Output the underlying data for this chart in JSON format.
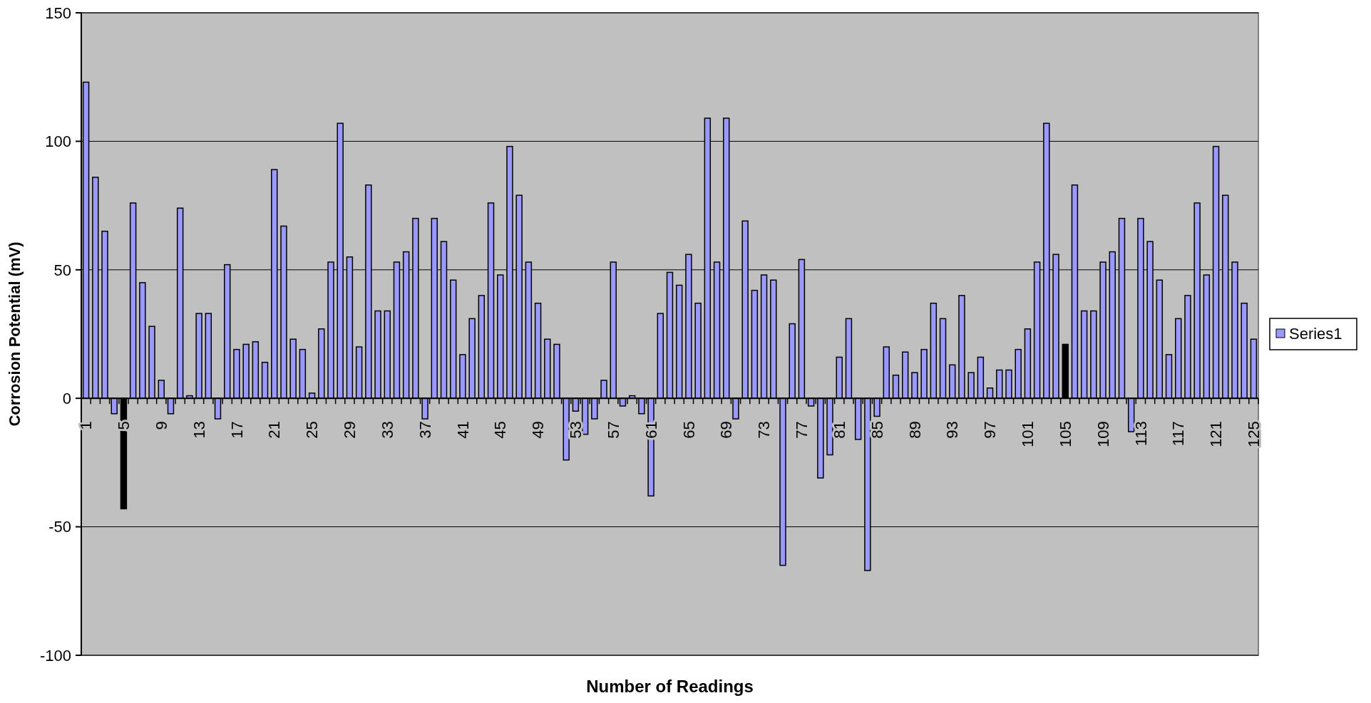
{
  "chart_data": {
    "type": "bar",
    "xlabel": "Number of Readings",
    "ylabel": "Corrosion Potential (mV)",
    "categories": [
      "1",
      null,
      null,
      null,
      "5",
      null,
      null,
      null,
      "9",
      null,
      null,
      null,
      "13",
      null,
      null,
      null,
      "17",
      null,
      null,
      null,
      "21",
      null,
      null,
      null,
      "25",
      null,
      null,
      null,
      "29",
      null,
      null,
      null,
      "33",
      null,
      null,
      null,
      "37",
      null,
      null,
      null,
      "41",
      null,
      null,
      null,
      "45",
      null,
      null,
      null,
      "49",
      null,
      null,
      null,
      "53",
      null,
      null,
      null,
      "57",
      null,
      null,
      null,
      "61",
      null,
      null,
      null,
      "65",
      null,
      null,
      null,
      "69",
      null,
      null,
      null,
      "73",
      null,
      null,
      null,
      "77",
      null,
      null,
      null,
      "81",
      null,
      null,
      null,
      "85",
      null,
      null,
      null,
      "89",
      null,
      null,
      null,
      "93",
      null,
      null,
      null,
      "97",
      null,
      null,
      null,
      "101",
      null,
      null,
      null,
      "105",
      null,
      null,
      null,
      "109",
      null,
      null,
      null,
      "113",
      null,
      null,
      null,
      "117",
      null,
      null,
      null,
      "121",
      null,
      null,
      null,
      "125"
    ],
    "series": [
      {
        "name": "Series1",
        "color": "#9999ff",
        "values": [
          123,
          86,
          65,
          -6,
          -43,
          76,
          45,
          28,
          7,
          -6,
          74,
          1,
          33,
          33,
          -8,
          52,
          19,
          21,
          22,
          14,
          89,
          67,
          23,
          19,
          2,
          27,
          53,
          107,
          55,
          20,
          83,
          34,
          34,
          53,
          57,
          70,
          -8,
          70,
          61,
          46,
          17,
          31,
          40,
          76,
          48,
          98,
          79,
          53,
          37,
          23,
          21,
          -24,
          -5,
          -14,
          -8,
          7,
          53,
          -3,
          1,
          -6,
          -38,
          33,
          49,
          44,
          56,
          37,
          109,
          53,
          109,
          -8,
          69,
          42,
          48,
          46,
          -65,
          29,
          54,
          -3,
          -31,
          -22,
          16,
          31,
          -16,
          -67,
          -7,
          20,
          9,
          18,
          10,
          19,
          37,
          31,
          13,
          40,
          10,
          16,
          4,
          11,
          11,
          19,
          27,
          53,
          107,
          56,
          21,
          83,
          34,
          34,
          53,
          57,
          70,
          -13,
          70,
          61,
          46,
          17,
          31,
          40,
          76,
          48,
          98,
          79,
          53,
          37,
          23
        ],
        "colors": [
          "#9999ff",
          "#9999ff",
          "#9999ff",
          "#9999ff",
          "#000000",
          "#9999ff",
          "#9999ff",
          "#9999ff",
          "#9999ff",
          "#9999ff",
          "#9999ff",
          "#9999ff",
          "#9999ff",
          "#9999ff",
          "#9999ff",
          "#9999ff",
          "#9999ff",
          "#9999ff",
          "#9999ff",
          "#9999ff",
          "#9999ff",
          "#9999ff",
          "#9999ff",
          "#9999ff",
          "#9999ff",
          "#9999ff",
          "#9999ff",
          "#9999ff",
          "#9999ff",
          "#9999ff",
          "#9999ff",
          "#9999ff",
          "#9999ff",
          "#9999ff",
          "#9999ff",
          "#9999ff",
          "#9999ff",
          "#9999ff",
          "#9999ff",
          "#9999ff",
          "#9999ff",
          "#9999ff",
          "#9999ff",
          "#9999ff",
          "#9999ff",
          "#9999ff",
          "#9999ff",
          "#9999ff",
          "#9999ff",
          "#9999ff",
          "#9999ff",
          "#9999ff",
          "#9999ff",
          "#9999ff",
          "#9999ff",
          "#9999ff",
          "#9999ff",
          "#9999ff",
          "#9999ff",
          "#9999ff",
          "#9999ff",
          "#9999ff",
          "#9999ff",
          "#9999ff",
          "#9999ff",
          "#9999ff",
          "#9999ff",
          "#9999ff",
          "#9999ff",
          "#9999ff",
          "#9999ff",
          "#9999ff",
          "#9999ff",
          "#9999ff",
          "#9999ff",
          "#9999ff",
          "#9999ff",
          "#9999ff",
          "#9999ff",
          "#9999ff",
          "#9999ff",
          "#9999ff",
          "#9999ff",
          "#9999ff",
          "#9999ff",
          "#9999ff",
          "#9999ff",
          "#9999ff",
          "#9999ff",
          "#9999ff",
          "#9999ff",
          "#9999ff",
          "#9999ff",
          "#9999ff",
          "#9999ff",
          "#9999ff",
          "#9999ff",
          "#9999ff",
          "#9999ff",
          "#9999ff",
          "#9999ff",
          "#9999ff",
          "#9999ff",
          "#9999ff",
          "#000000",
          "#9999ff",
          "#9999ff",
          "#9999ff",
          "#9999ff",
          "#9999ff",
          "#9999ff",
          "#9999ff",
          "#9999ff",
          "#9999ff",
          "#9999ff",
          "#9999ff",
          "#9999ff",
          "#9999ff",
          "#9999ff",
          "#9999ff",
          "#9999ff",
          "#9999ff",
          "#9999ff",
          "#9999ff",
          "#9999ff"
        ]
      }
    ],
    "ylim": [
      -100,
      150
    ],
    "yticks": [
      -100,
      -50,
      0,
      50,
      100,
      150
    ],
    "grid": "y",
    "legend": "right"
  }
}
